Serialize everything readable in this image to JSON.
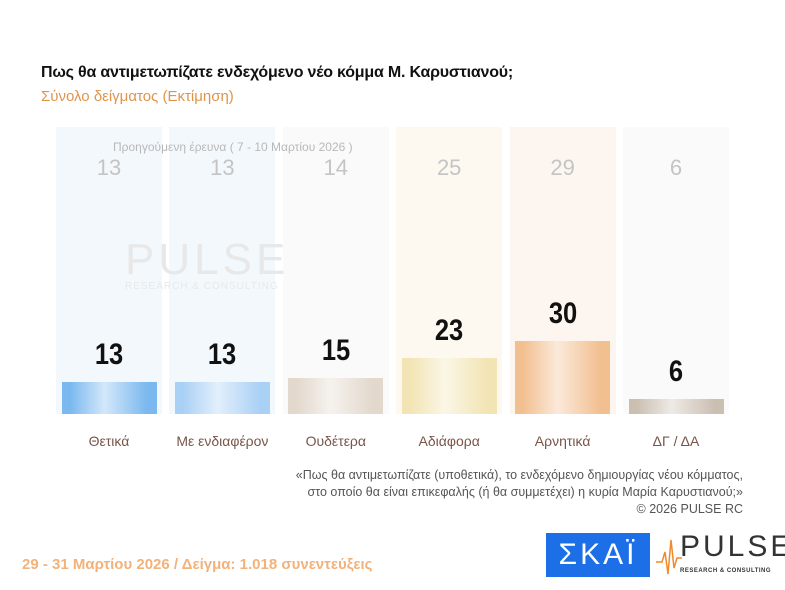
{
  "title": "Πως θα αντιμετωπίζατε ενδεχόμενο νέο κόμμα Μ. Καρυστιανού;",
  "subtitle": "Σύνολο δείγματος  (Εκτίμηση)",
  "previous_label": "Προηγούμενη έρευνα ( 7 - 10 Μαρτίου 2026 )",
  "watermark": {
    "main": "PULSE",
    "sub": "RESEARCH & CONSULTING"
  },
  "chart_data": {
    "type": "bar",
    "categories": [
      "Θετικά",
      "Με ενδιαφέρον",
      "Ουδέτερα",
      "Αδιάφορα",
      "Αρνητικά",
      "ΔΓ / ΔΑ"
    ],
    "series": [
      {
        "name": "Προηγούμενη έρευνα ( 7 - 10 Μαρτίου 2026 )",
        "values": [
          13,
          13,
          14,
          25,
          29,
          6
        ]
      },
      {
        "values": [
          13,
          13,
          15,
          23,
          30,
          6
        ]
      }
    ],
    "bar_colors": [
      "#7ab8ef",
      "#a9d0f5",
      "#e2d8cc",
      "#f2e4b4",
      "#f2bf90",
      "#cbbfb2"
    ],
    "panel_colors": [
      "#f3f8fd",
      "#f3f8fd",
      "#fafafa",
      "#fdf9f1",
      "#fdf6f0",
      "#fafafa"
    ]
  },
  "note": {
    "line1": "«Πως θα αντιμετωπίζατε (υποθετικά), το ενδεχόμενο δημιουργίας νέου κόμματος,",
    "line2": "στο οποίο θα είναι επικεφαλής (ή θα συμμετέχει) η κυρία Μαρία Καρυστιανού;»",
    "copyright": "©  2026  PULSE RC"
  },
  "footer": "29 - 31  Μαρτίου 2026  /  Δείγμα:  1.018 συνεντεύξεις",
  "logos": {
    "skai": "ΣΚΑΪ",
    "pulse": "PULSE",
    "pulse_sub": "RESEARCH & CONSULTING"
  }
}
